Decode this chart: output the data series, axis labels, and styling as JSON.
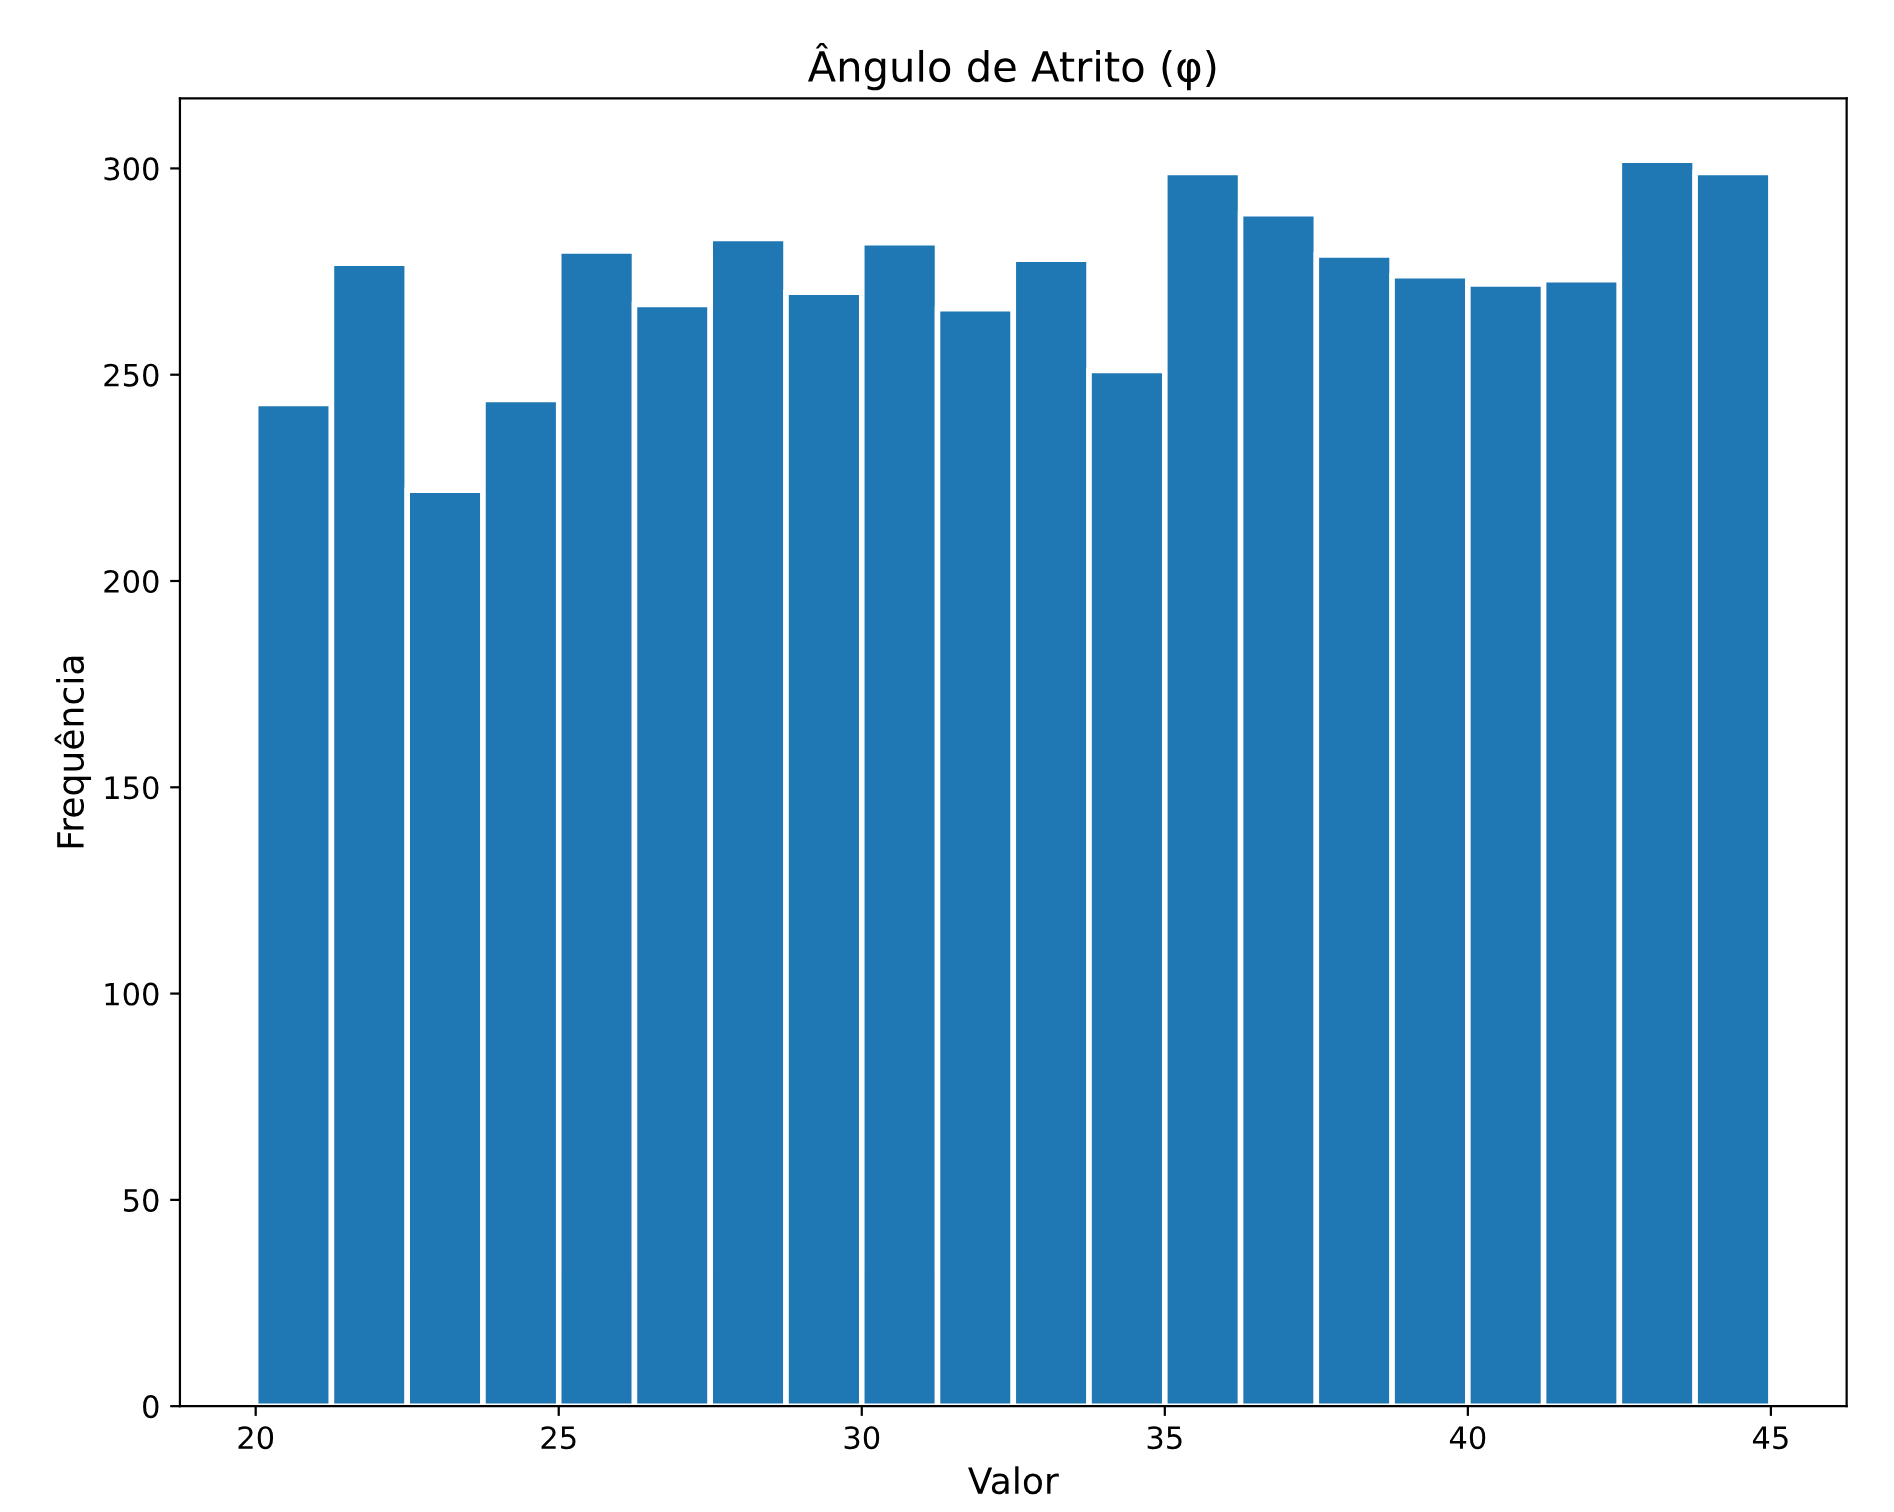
{
  "chart_data": {
    "type": "histogram",
    "title": "Ângulo de Atrito (φ)",
    "xlabel": "Valor",
    "ylabel": "Frequência",
    "bins": [
      20,
      21.25,
      22.5,
      23.75,
      25,
      26.25,
      27.5,
      28.75,
      30,
      31.25,
      32.5,
      33.75,
      35,
      36.25,
      37.5,
      38.75,
      40,
      41.25,
      42.5,
      43.75,
      45
    ],
    "values": [
      243,
      277,
      222,
      244,
      280,
      267,
      283,
      270,
      282,
      266,
      278,
      251,
      299,
      289,
      279,
      274,
      272,
      273,
      302,
      299
    ],
    "color": "#1f77b4",
    "xlim": [
      18.75,
      46.25
    ],
    "xticks": [
      20,
      25,
      30,
      35,
      40,
      45
    ],
    "ylim": [
      0,
      317
    ],
    "yticks": [
      0,
      50,
      100,
      150,
      200,
      250,
      300
    ],
    "grid": false,
    "legend": false
  }
}
